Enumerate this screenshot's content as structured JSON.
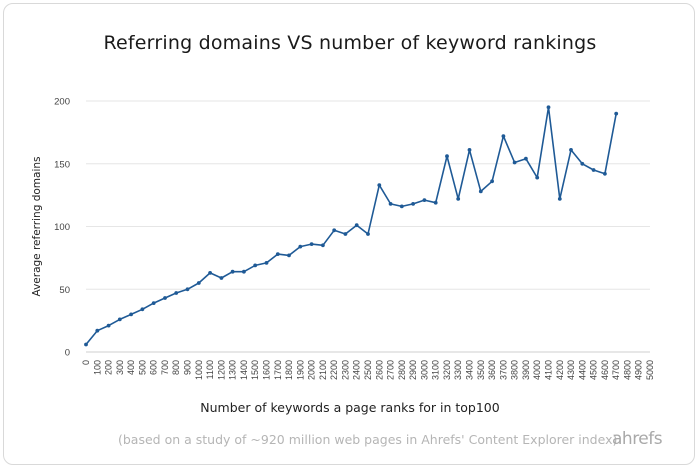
{
  "chart_data": {
    "type": "line",
    "title": "Referring domains VS number of keyword rankings",
    "xlabel": "Number of keywords a page ranks for in top100",
    "ylabel": "Average referring domains",
    "footnote": "(based on a study of ~920 million web pages in Ahrefs' Content Explorer index)",
    "brand": "ahrefs",
    "ylim": [
      0,
      200
    ],
    "yticks": [
      0,
      50,
      100,
      150,
      200
    ],
    "grid": true,
    "line_color": "#1f5a96",
    "x": [
      0,
      100,
      200,
      300,
      400,
      500,
      600,
      700,
      800,
      900,
      1000,
      1100,
      1200,
      1300,
      1400,
      1500,
      1600,
      1700,
      1800,
      1900,
      2000,
      2100,
      2200,
      2300,
      2400,
      2500,
      2600,
      2700,
      2800,
      2900,
      3000,
      3100,
      3200,
      3300,
      3400,
      3500,
      3600,
      3700,
      3800,
      3900,
      4000,
      4100,
      4200,
      4300,
      4400,
      4500,
      4600,
      4700,
      4800,
      4900,
      5000
    ],
    "series": [
      {
        "values": [
          6,
          17,
          21,
          26,
          30,
          34,
          39,
          43,
          47,
          50,
          55,
          63,
          59,
          64,
          64,
          69,
          71,
          78,
          77,
          84,
          86,
          85,
          97,
          94,
          101,
          94,
          133,
          118,
          116,
          118,
          121,
          119,
          156,
          122,
          161,
          128,
          136,
          172,
          151,
          154,
          139,
          195,
          122,
          161,
          150,
          145,
          142,
          190,
          null,
          null,
          null
        ]
      }
    ]
  }
}
